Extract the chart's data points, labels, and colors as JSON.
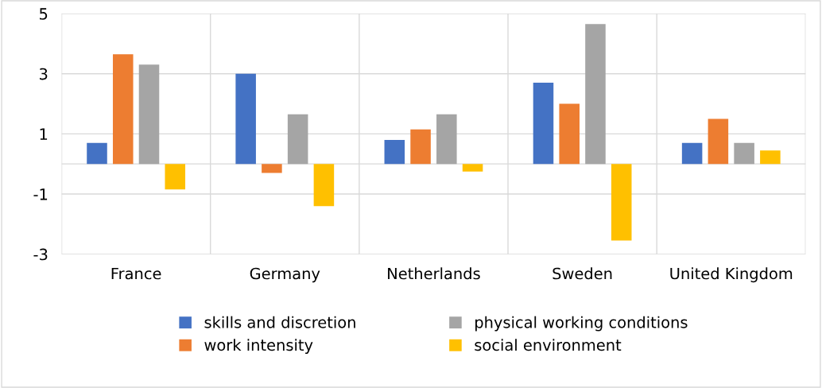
{
  "chart_data": {
    "type": "bar",
    "categories": [
      "France",
      "Germany",
      "Netherlands",
      "Sweden",
      "United Kingdom"
    ],
    "series": [
      {
        "name": "skills and discretion",
        "color": "#4472c4",
        "values": [
          0.7,
          3.0,
          0.8,
          2.7,
          0.7
        ]
      },
      {
        "name": "work intensity",
        "color": "#ed7d31",
        "values": [
          3.65,
          -0.3,
          1.15,
          2.0,
          1.5
        ]
      },
      {
        "name": "physical working conditions",
        "color": "#a5a5a5",
        "values": [
          3.3,
          1.65,
          1.65,
          4.65,
          0.7
        ]
      },
      {
        "name": "social environment",
        "color": "#ffc000",
        "values": [
          -0.85,
          -1.4,
          -0.25,
          -2.55,
          0.45
        ]
      }
    ],
    "ylim": [
      -3,
      5
    ],
    "yticks": [
      -3,
      -1,
      1,
      3,
      5
    ],
    "grid": true,
    "legend": "bottom"
  }
}
